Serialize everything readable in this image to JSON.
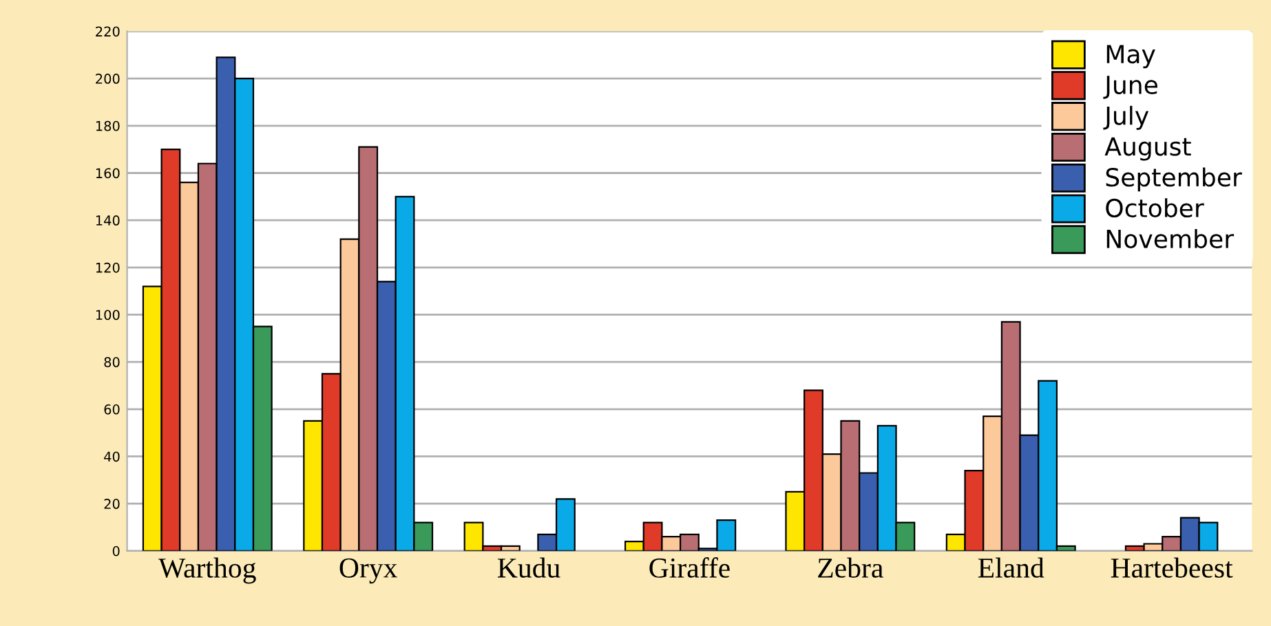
{
  "chart_data": {
    "type": "bar",
    "categories": [
      "Warthog",
      "Oryx",
      "Kudu",
      "Giraffe",
      "Zebra",
      "Eland",
      "Hartebeest"
    ],
    "series": [
      {
        "name": "May",
        "color": "#ffe600",
        "values": [
          112,
          55,
          12,
          4,
          25,
          7,
          null
        ]
      },
      {
        "name": "June",
        "color": "#e03a28",
        "values": [
          170,
          75,
          2,
          12,
          68,
          34,
          2
        ]
      },
      {
        "name": "July",
        "color": "#fbc99a",
        "values": [
          156,
          132,
          2,
          6,
          41,
          57,
          3
        ]
      },
      {
        "name": "August",
        "color": "#b86e72",
        "values": [
          164,
          171,
          null,
          7,
          55,
          97,
          6
        ]
      },
      {
        "name": "September",
        "color": "#3a5fae",
        "values": [
          209,
          114,
          7,
          1,
          33,
          49,
          14
        ]
      },
      {
        "name": "October",
        "color": "#0aaae8",
        "values": [
          200,
          150,
          22,
          13,
          53,
          72,
          12
        ]
      },
      {
        "name": "November",
        "color": "#3a9a5a",
        "values": [
          95,
          12,
          null,
          null,
          12,
          2,
          null
        ]
      }
    ],
    "ylim": [
      0,
      220
    ],
    "yticks": [
      0,
      20,
      40,
      60,
      80,
      100,
      120,
      140,
      160,
      180,
      200,
      220
    ],
    "grid": "y",
    "legend": "top right"
  }
}
